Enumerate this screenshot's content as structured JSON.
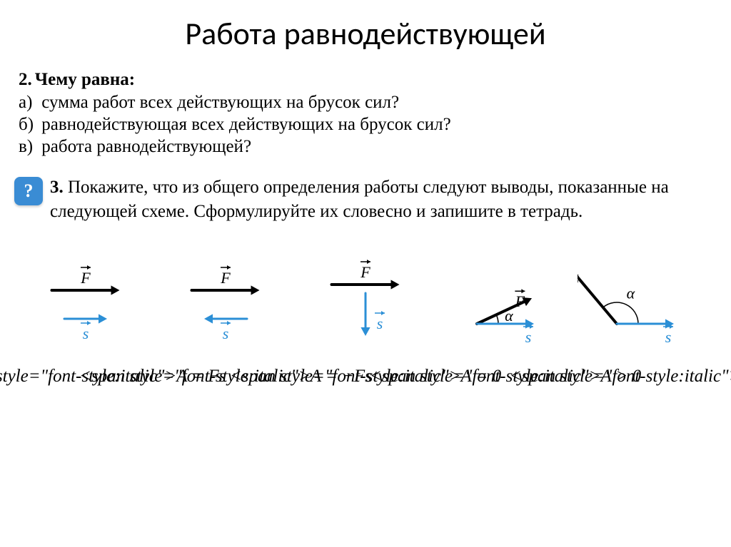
{
  "title": "Работа равнодействующей",
  "q2": {
    "num": "2.",
    "lead": "Чему равна:",
    "a_letter": "а)",
    "a_text": "сумма работ всех действующих на брусок сил?",
    "b_letter": "б)",
    "b_text": "равнодействующая всех действующих на брусок сил?",
    "c_letter": "в)",
    "c_text": "работа равнодействующей?"
  },
  "q3": {
    "icon": "?",
    "num": "3.",
    "text": "Покажите, что из общего определения работы следуют выводы, показанные на следующей схеме. Сформулируйте их словесно и запишите в тетрадь."
  },
  "diagrams": {
    "force_color": "#000000",
    "s_color": "#2b8fd6",
    "alpha_color": "#000000",
    "label_F": "F",
    "label_s": "s",
    "label_alpha": "α",
    "label_fontsize": 22,
    "arrow_head": 12,
    "line_width_F": 4,
    "line_width_s": 3,
    "cases": [
      {
        "formula": "A = Fs",
        "F_angle_deg": 0,
        "s_angle_deg": 0
      },
      {
        "formula": "A = −Fs",
        "F_angle_deg": 0,
        "s_angle_deg": 180
      },
      {
        "formula": "A = 0",
        "F_angle_deg": 0,
        "s_angle_deg": 270
      },
      {
        "formula": "A > 0",
        "F_angle_deg": 25,
        "s_angle_deg": 0,
        "show_alpha": true
      },
      {
        "formula": "A < 0",
        "F_angle_deg": 130,
        "s_angle_deg": 0,
        "show_alpha": true
      }
    ]
  }
}
